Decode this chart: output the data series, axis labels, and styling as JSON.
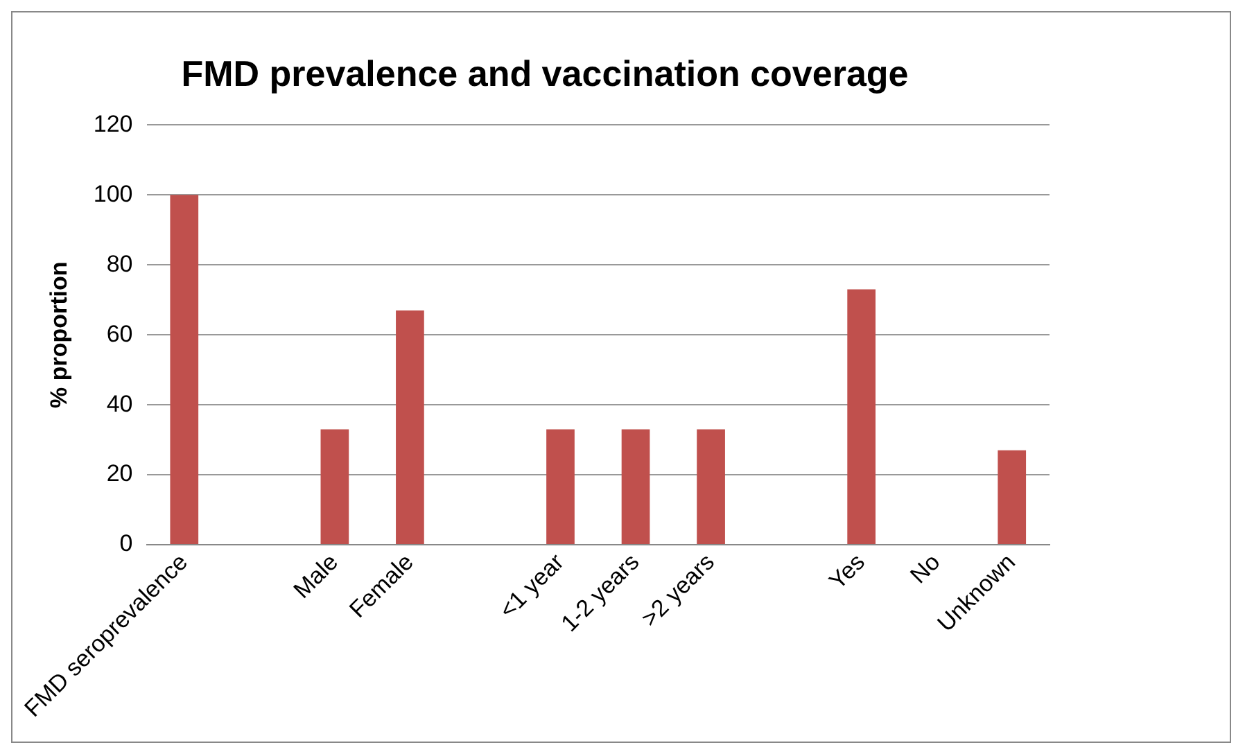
{
  "chart_data": {
    "type": "bar",
    "title": "FMD prevalence and vaccination coverage",
    "ylabel": "% proportion",
    "categories": [
      "FMD seroprevalence",
      null,
      "Male",
      "Female",
      null,
      "<1 year",
      "1-2 years",
      ">2 years",
      null,
      "Yes",
      "No",
      "Unknown"
    ],
    "values": [
      100,
      null,
      33,
      67,
      null,
      33,
      33,
      33,
      null,
      73,
      0,
      27
    ],
    "color": "#c0504d",
    "ylim": [
      0,
      120
    ],
    "yticks": [
      0,
      20,
      40,
      60,
      80,
      100,
      120
    ],
    "grid": "y",
    "legend": false
  }
}
